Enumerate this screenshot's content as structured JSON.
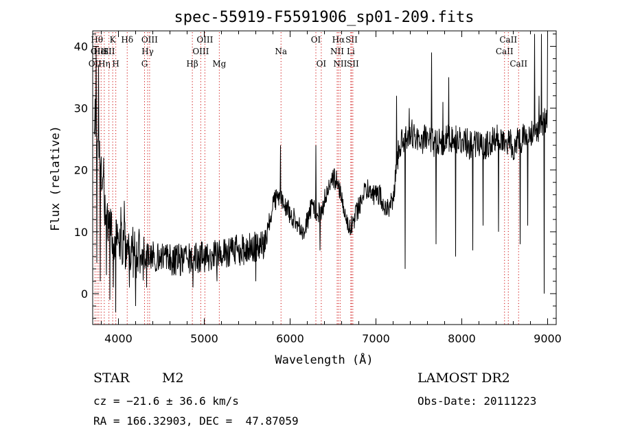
{
  "chart_data": {
    "type": "line",
    "title": "spec-55919-F5591906_sp01-209.fits",
    "xlabel": "Wavelength (Å)",
    "ylabel": "Flux (relative)",
    "xlim": [
      3700,
      9100
    ],
    "ylim": [
      -5,
      42.5
    ],
    "xticks": [
      4000,
      5000,
      6000,
      7000,
      8000,
      9000
    ],
    "yticks": [
      0,
      10,
      20,
      30,
      40
    ],
    "grid": false,
    "line_color": "#000000",
    "marker_color": "#cc0000",
    "spectrum_anchors": [
      {
        "x": 3720,
        "y": 30
      },
      {
        "x": 3760,
        "y": 25
      },
      {
        "x": 3800,
        "y": 20
      },
      {
        "x": 3850,
        "y": 12
      },
      {
        "x": 3900,
        "y": 10
      },
      {
        "x": 3950,
        "y": 9
      },
      {
        "x": 4000,
        "y": 8.5
      },
      {
        "x": 4100,
        "y": 7
      },
      {
        "x": 4200,
        "y": 6.5
      },
      {
        "x": 4400,
        "y": 6
      },
      {
        "x": 4600,
        "y": 5.5
      },
      {
        "x": 4800,
        "y": 5.5
      },
      {
        "x": 5000,
        "y": 6
      },
      {
        "x": 5200,
        "y": 6.5
      },
      {
        "x": 5400,
        "y": 7
      },
      {
        "x": 5600,
        "y": 7.5
      },
      {
        "x": 5700,
        "y": 8
      },
      {
        "x": 5750,
        "y": 11
      },
      {
        "x": 5800,
        "y": 14
      },
      {
        "x": 5850,
        "y": 16
      },
      {
        "x": 5900,
        "y": 15
      },
      {
        "x": 5950,
        "y": 14
      },
      {
        "x": 6000,
        "y": 13
      },
      {
        "x": 6050,
        "y": 12
      },
      {
        "x": 6100,
        "y": 11
      },
      {
        "x": 6150,
        "y": 9
      },
      {
        "x": 6200,
        "y": 12
      },
      {
        "x": 6250,
        "y": 14
      },
      {
        "x": 6300,
        "y": 13
      },
      {
        "x": 6350,
        "y": 13
      },
      {
        "x": 6400,
        "y": 15
      },
      {
        "x": 6450,
        "y": 17
      },
      {
        "x": 6500,
        "y": 19
      },
      {
        "x": 6550,
        "y": 18
      },
      {
        "x": 6600,
        "y": 15
      },
      {
        "x": 6650,
        "y": 12
      },
      {
        "x": 6700,
        "y": 11
      },
      {
        "x": 6750,
        "y": 12
      },
      {
        "x": 6800,
        "y": 14
      },
      {
        "x": 6850,
        "y": 16
      },
      {
        "x": 6900,
        "y": 17
      },
      {
        "x": 6950,
        "y": 16
      },
      {
        "x": 7000,
        "y": 16
      },
      {
        "x": 7050,
        "y": 16
      },
      {
        "x": 7100,
        "y": 14
      },
      {
        "x": 7150,
        "y": 14
      },
      {
        "x": 7200,
        "y": 15
      },
      {
        "x": 7250,
        "y": 22
      },
      {
        "x": 7300,
        "y": 25
      },
      {
        "x": 7400,
        "y": 26
      },
      {
        "x": 7500,
        "y": 25
      },
      {
        "x": 7600,
        "y": 25
      },
      {
        "x": 7700,
        "y": 24
      },
      {
        "x": 7800,
        "y": 25
      },
      {
        "x": 7900,
        "y": 25
      },
      {
        "x": 8000,
        "y": 25
      },
      {
        "x": 8100,
        "y": 24
      },
      {
        "x": 8200,
        "y": 24
      },
      {
        "x": 8300,
        "y": 24
      },
      {
        "x": 8400,
        "y": 25
      },
      {
        "x": 8500,
        "y": 25
      },
      {
        "x": 8600,
        "y": 24
      },
      {
        "x": 8700,
        "y": 25
      },
      {
        "x": 8800,
        "y": 26
      },
      {
        "x": 8900,
        "y": 27
      },
      {
        "x": 9000,
        "y": 28
      }
    ],
    "spikes": [
      {
        "x": 3740,
        "y": 40
      },
      {
        "x": 3750,
        "y": 5
      },
      {
        "x": 3770,
        "y": 37
      },
      {
        "x": 3790,
        "y": 2
      },
      {
        "x": 3830,
        "y": 22
      },
      {
        "x": 3860,
        "y": 3
      },
      {
        "x": 3900,
        "y": -1
      },
      {
        "x": 3940,
        "y": 1
      },
      {
        "x": 3970,
        "y": -3
      },
      {
        "x": 4030,
        "y": 14
      },
      {
        "x": 4070,
        "y": 15
      },
      {
        "x": 4130,
        "y": 1
      },
      {
        "x": 4200,
        "y": -2
      },
      {
        "x": 4330,
        "y": 1
      },
      {
        "x": 4870,
        "y": 1
      },
      {
        "x": 5150,
        "y": 2
      },
      {
        "x": 5600,
        "y": 2
      },
      {
        "x": 5890,
        "y": 24
      },
      {
        "x": 6300,
        "y": 24
      },
      {
        "x": 6350,
        "y": 7
      },
      {
        "x": 7240,
        "y": 32
      },
      {
        "x": 7340,
        "y": 4
      },
      {
        "x": 7390,
        "y": 30
      },
      {
        "x": 7650,
        "y": 39
      },
      {
        "x": 7700,
        "y": 8
      },
      {
        "x": 7780,
        "y": 31
      },
      {
        "x": 7850,
        "y": 35
      },
      {
        "x": 7930,
        "y": 6
      },
      {
        "x": 8130,
        "y": 7
      },
      {
        "x": 8250,
        "y": 11
      },
      {
        "x": 8430,
        "y": 10
      },
      {
        "x": 8680,
        "y": 8
      },
      {
        "x": 8770,
        "y": 11
      },
      {
        "x": 8850,
        "y": 42
      },
      {
        "x": 8900,
        "y": 32
      },
      {
        "x": 8930,
        "y": 42
      },
      {
        "x": 8960,
        "y": 0
      },
      {
        "x": 9000,
        "y": 42
      }
    ],
    "line_markers": [
      {
        "x": 3727,
        "label": "OII",
        "row": 3
      },
      {
        "x": 3750,
        "label": "Hθ",
        "row": 1
      },
      {
        "x": 3771,
        "label": "OIII",
        "row": 2
      },
      {
        "x": 3798,
        "label": "HeI",
        "row": 2
      },
      {
        "x": 3835,
        "label": "Hη",
        "row": 3
      },
      {
        "x": 3889,
        "label": "SII",
        "row": 2
      },
      {
        "x": 3933,
        "label": "K",
        "row": 1
      },
      {
        "x": 3969,
        "label": "H",
        "row": 3
      },
      {
        "x": 4102,
        "label": "Hδ",
        "row": 1
      },
      {
        "x": 4304,
        "label": "G",
        "row": 3
      },
      {
        "x": 4340,
        "label": "Hγ",
        "row": 2
      },
      {
        "x": 4363,
        "label": "OIII",
        "row": 1
      },
      {
        "x": 4861,
        "label": "Hβ",
        "row": 3
      },
      {
        "x": 4959,
        "label": "OIII",
        "row": 2
      },
      {
        "x": 5007,
        "label": "OIII",
        "row": 1
      },
      {
        "x": 5175,
        "label": "Mg",
        "row": 3
      },
      {
        "x": 5894,
        "label": "Na",
        "row": 2
      },
      {
        "x": 6300,
        "label": "OI",
        "row": 1
      },
      {
        "x": 6363,
        "label": "OI",
        "row": 3
      },
      {
        "x": 6548,
        "label": "NII",
        "row": 2
      },
      {
        "x": 6563,
        "label": "Hα",
        "row": 1
      },
      {
        "x": 6583,
        "label": "NII",
        "row": 3
      },
      {
        "x": 6707,
        "label": "Li",
        "row": 2
      },
      {
        "x": 6716,
        "label": "SII",
        "row": 1
      },
      {
        "x": 6731,
        "label": "SII",
        "row": 3
      },
      {
        "x": 8498,
        "label": "CaII",
        "row": 2
      },
      {
        "x": 8542,
        "label": "CaII",
        "row": 1
      },
      {
        "x": 8662,
        "label": "CaII",
        "row": 3
      }
    ]
  },
  "info": {
    "object_class": "STAR",
    "subclass": "M2",
    "survey": "LAMOST DR2",
    "redshift": "cz = −21.6 ± 36.6 km/s",
    "obs_date": "Obs-Date: 20111223",
    "coords": "RA = 166.32903, DEC =  47.87059"
  }
}
